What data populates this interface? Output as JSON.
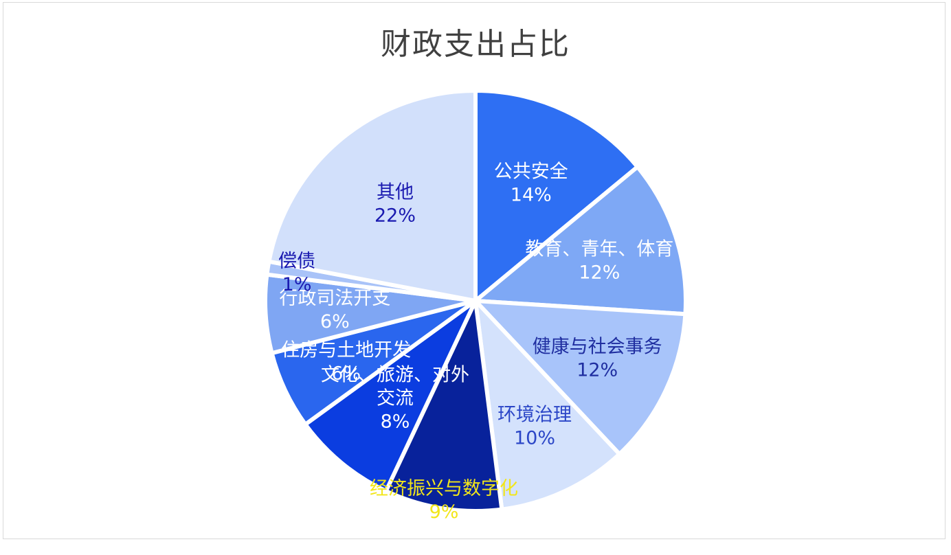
{
  "chart_data": {
    "type": "pie",
    "title": "财政支出占比",
    "slices": [
      {
        "name": "公共安全",
        "value": 14,
        "label": "14%",
        "color": "#2e6ff3",
        "text_color": "#ffffff"
      },
      {
        "name": "教育、青年、体育",
        "value": 12,
        "label": "12%",
        "color": "#7ea8f5",
        "text_color": "#ffffff"
      },
      {
        "name": "健康与社会事务",
        "value": 12,
        "label": "12%",
        "color": "#a8c4fa",
        "text_color": "#1f2ea0"
      },
      {
        "name": "环境治理",
        "value": 10,
        "label": "10%",
        "color": "#d4e2fc",
        "text_color": "#2b46c7"
      },
      {
        "name": "经济振兴与数字化",
        "value": 9,
        "label": "9%",
        "color": "#08229b",
        "text_color": "#f2e61a"
      },
      {
        "name": "文化、旅游、对外交流",
        "value": 8,
        "label": "8%",
        "color": "#0b3de0",
        "text_color": "#ffffff"
      },
      {
        "name": "住房与土地开发",
        "value": 6,
        "label": "6%",
        "color": "#2a66ee",
        "text_color": "#ffffff"
      },
      {
        "name": "行政司法开支",
        "value": 6,
        "label": "6%",
        "color": "#7fa6f3",
        "text_color": "#ffffff"
      },
      {
        "name": "偿债",
        "value": 1,
        "label": "1%",
        "color": "#a9c3f8",
        "text_color": "#1a1ab0"
      },
      {
        "name": "其他",
        "value": 22,
        "label": "22%",
        "color": "#d2e0fb",
        "text_color": "#1a1ab0"
      }
    ],
    "legend": "none"
  }
}
